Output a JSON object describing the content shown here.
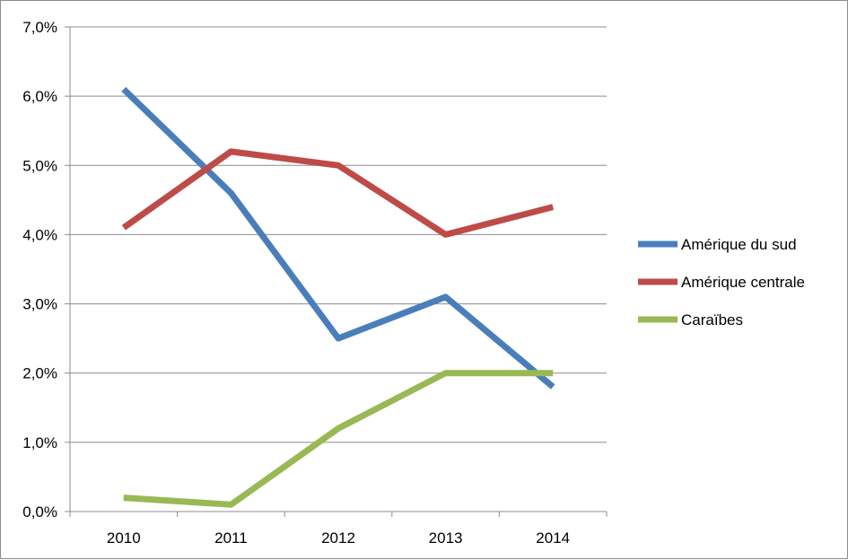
{
  "chart_data": {
    "type": "line",
    "title": "",
    "xlabel": "",
    "ylabel": "",
    "categories": [
      "2010",
      "2011",
      "2012",
      "2013",
      "2014"
    ],
    "series": [
      {
        "name": "Amérique du sud",
        "color": "#4a7ebb",
        "values": [
          6.1,
          4.6,
          2.5,
          3.1,
          1.8
        ]
      },
      {
        "name": "Amérique centrale",
        "color": "#be4b48",
        "values": [
          4.1,
          5.2,
          5.0,
          4.0,
          4.4
        ]
      },
      {
        "name": "Caraïbes",
        "color": "#98b954",
        "values": [
          0.2,
          0.1,
          1.2,
          2.0,
          2.0
        ]
      }
    ],
    "ylim": [
      0,
      7
    ],
    "yticks": [
      0,
      1,
      2,
      3,
      4,
      5,
      6,
      7
    ],
    "ytick_labels": [
      "0,0%",
      "1,0%",
      "2,0%",
      "3,0%",
      "4,0%",
      "5,0%",
      "6,0%",
      "7,0%"
    ],
    "grid": true,
    "legend_position": "right"
  }
}
